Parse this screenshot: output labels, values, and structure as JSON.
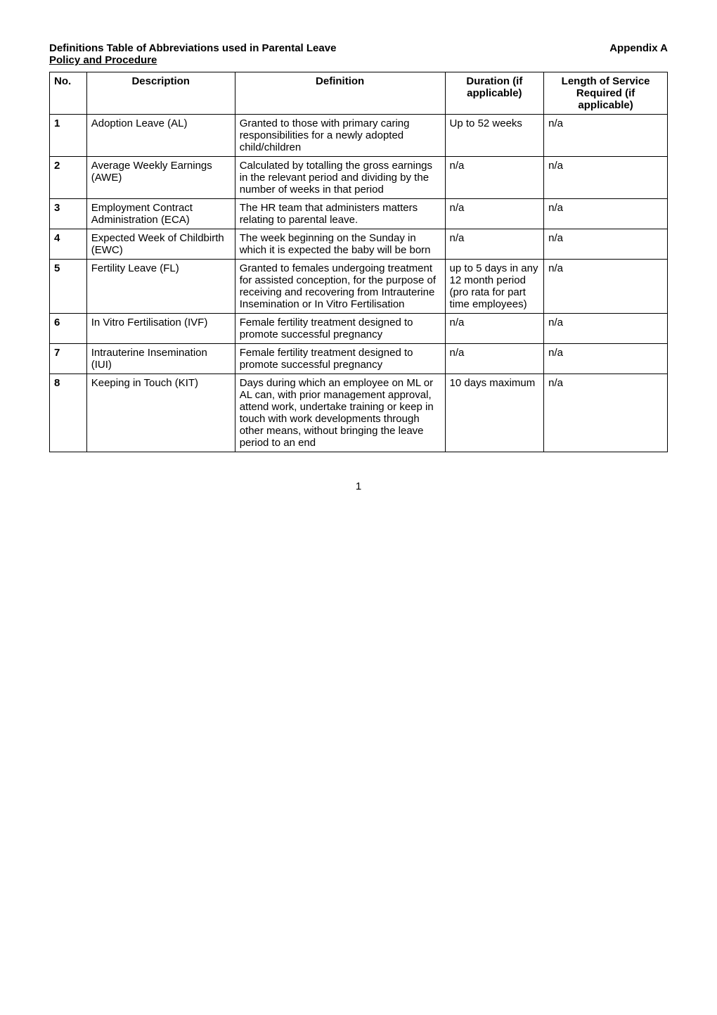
{
  "header": {
    "title_line1": "Definitions Table of Abbreviations used in Parental Leave",
    "title_line2": "Policy and Procedure",
    "appendix": "Appendix A"
  },
  "table": {
    "columns": [
      {
        "key": "no",
        "label": "No."
      },
      {
        "key": "desc",
        "label": "Description"
      },
      {
        "key": "def",
        "label": "Definition"
      },
      {
        "key": "dur",
        "label": "Duration (if applicable)"
      },
      {
        "key": "len",
        "label": "Length of Service Required (if applicable)"
      }
    ],
    "rows": [
      {
        "no": "1",
        "desc": "Adoption Leave (AL)",
        "def": "Granted to those with primary caring responsibilities for a newly adopted child/children",
        "dur": "Up to 52 weeks",
        "len": "n/a"
      },
      {
        "no": "2",
        "desc": "Average Weekly Earnings (AWE)",
        "def": "Calculated by totalling the gross earnings in the relevant period and dividing by the number of weeks in that period",
        "dur": "n/a",
        "len": "n/a"
      },
      {
        "no": "3",
        "desc": "Employment Contract Administration (ECA)",
        "def": "The HR team that administers matters relating to parental leave.",
        "dur": "n/a",
        "len": "n/a"
      },
      {
        "no": "4",
        "desc": "Expected Week of Childbirth (EWC)",
        "def": "The week beginning on the Sunday in which it is expected the baby will be born",
        "dur": "n/a",
        "len": "n/a"
      },
      {
        "no": "5",
        "desc": "Fertility Leave (FL)",
        "def": "Granted to females undergoing treatment for assisted conception, for the purpose of receiving and recovering from Intrauterine Insemination or In Vitro Fertilisation",
        "dur": "up to 5 days in any 12 month period (pro rata for part time employees)",
        "len": "n/a"
      },
      {
        "no": "6",
        "desc": "In Vitro Fertilisation (IVF)",
        "def": "Female fertility treatment designed to promote successful pregnancy",
        "dur": "n/a",
        "len": "n/a"
      },
      {
        "no": "7",
        "desc": "Intrauterine Insemination (IUI)",
        "def": "Female fertility treatment designed to promote successful pregnancy",
        "dur": "n/a",
        "len": "n/a"
      },
      {
        "no": "8",
        "desc": "Keeping in Touch (KIT)",
        "def": "Days during which an employee on ML or AL can, with prior management approval, attend work, undertake training or keep in touch with work developments through other means, without bringing the leave period to an end",
        "dur": "10 days maximum",
        "len": "n/a"
      }
    ],
    "col_widths_pct": [
      6,
      24,
      34,
      16,
      20
    ],
    "border_color": "#000000",
    "background_color": "#ffffff",
    "font_size_pt": 12
  },
  "page_number": "1"
}
